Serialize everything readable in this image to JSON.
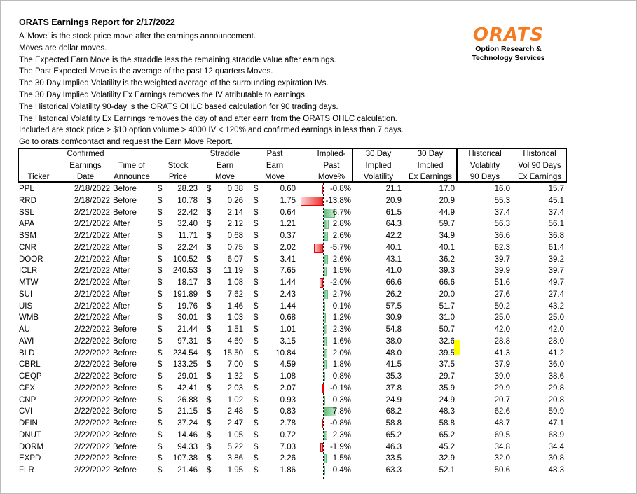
{
  "title": "ORATS Earnings Report for 2/17/2022",
  "notes": [
    "A 'Move' is the stock price move after the earnings announcement.",
    "Moves are dollar moves.",
    "The Expected Earn Move is the straddle less the remaining straddle value after earnings.",
    "The Past Expected Move is the average of the past 12 quarters Moves.",
    "The 30 Day Implied Volatility is the weighted average of the surrounding expiration IVs.",
    "The 30 Day Implied Volatility Ex Earnings removes the IV atributable to earnings.",
    "The Historical Volatility 90-day is the ORATS OHLC based calculation for 90 trading days.",
    "The Historical Volatility Ex Earnings removes the day of and after earn from the ORATS OHLC calculation.",
    "Included are stock price > $10 option volume > 4000 IV < 120% and confirmed earnings in less than 7 days.",
    "Go to orats.com\\contact and request the Earn Move Report."
  ],
  "logo": {
    "mark": "ORATS",
    "line1": "Option Research &",
    "line2": "Technology Services",
    "color": "#f47b20"
  },
  "headers": {
    "ticker": "Ticker",
    "date": [
      "Confirmed",
      "Earnings",
      "Date"
    ],
    "time": [
      "Time of",
      "Announce"
    ],
    "price": [
      "Stock",
      "Price"
    ],
    "straddle": [
      "Straddle",
      "Earn",
      "Move"
    ],
    "past": [
      "Past",
      "Earn",
      "Move"
    ],
    "diff": [
      "Implied-",
      "Past",
      "Move%"
    ],
    "iv": [
      "30 Day",
      "Implied",
      "Volatility"
    ],
    "ivx": [
      "30 Day",
      "Implied",
      "Ex Earnings"
    ],
    "hv": [
      "Historical",
      "Volatility",
      "90 Days"
    ],
    "hvx": [
      "Historical",
      "Vol 90 Days",
      "Ex Earnings"
    ]
  },
  "currency": "$",
  "rows": [
    [
      "PPL",
      "2/18/2022",
      "Before",
      "28.23",
      "0.38",
      "0.60",
      "-0.8%",
      "21.1",
      "17.0",
      "16.0",
      "15.7"
    ],
    [
      "RRD",
      "2/18/2022",
      "Before",
      "10.78",
      "0.26",
      "1.75",
      "-13.8%",
      "20.9",
      "20.9",
      "55.3",
      "45.1"
    ],
    [
      "SSL",
      "2/21/2022",
      "Before",
      "22.42",
      "2.14",
      "0.64",
      "6.7%",
      "61.5",
      "44.9",
      "37.4",
      "37.4"
    ],
    [
      "APA",
      "2/21/2022",
      "After",
      "32.40",
      "2.12",
      "1.21",
      "2.8%",
      "64.3",
      "59.7",
      "56.3",
      "56.1"
    ],
    [
      "BSM",
      "2/21/2022",
      "After",
      "11.71",
      "0.68",
      "0.37",
      "2.6%",
      "42.2",
      "34.9",
      "36.6",
      "36.8"
    ],
    [
      "CNR",
      "2/21/2022",
      "After",
      "22.24",
      "0.75",
      "2.02",
      "-5.7%",
      "40.1",
      "40.1",
      "62.3",
      "61.4"
    ],
    [
      "DOOR",
      "2/21/2022",
      "After",
      "100.52",
      "6.07",
      "3.41",
      "2.6%",
      "43.1",
      "36.2",
      "39.7",
      "39.2"
    ],
    [
      "ICLR",
      "2/21/2022",
      "After",
      "240.53",
      "11.19",
      "7.65",
      "1.5%",
      "41.0",
      "39.3",
      "39.9",
      "39.7"
    ],
    [
      "MTW",
      "2/21/2022",
      "After",
      "18.17",
      "1.08",
      "1.44",
      "-2.0%",
      "66.6",
      "66.6",
      "51.6",
      "49.7"
    ],
    [
      "SUI",
      "2/21/2022",
      "After",
      "191.89",
      "7.62",
      "2.43",
      "2.7%",
      "26.2",
      "20.0",
      "27.6",
      "27.4"
    ],
    [
      "UIS",
      "2/21/2022",
      "After",
      "19.76",
      "1.46",
      "1.44",
      "0.1%",
      "57.5",
      "51.7",
      "50.2",
      "43.2"
    ],
    [
      "WMB",
      "2/21/2022",
      "After",
      "30.01",
      "1.03",
      "0.68",
      "1.2%",
      "30.9",
      "31.0",
      "25.0",
      "25.0"
    ],
    [
      "AU",
      "2/22/2022",
      "Before",
      "21.44",
      "1.51",
      "1.01",
      "2.3%",
      "54.8",
      "50.7",
      "42.0",
      "42.0"
    ],
    [
      "AWI",
      "2/22/2022",
      "Before",
      "97.31",
      "4.69",
      "3.15",
      "1.6%",
      "38.0",
      "32.6",
      "28.8",
      "28.0"
    ],
    [
      "BLD",
      "2/22/2022",
      "Before",
      "234.54",
      "15.50",
      "10.84",
      "2.0%",
      "48.0",
      "39.5",
      "41.3",
      "41.2"
    ],
    [
      "CBRL",
      "2/22/2022",
      "Before",
      "133.25",
      "7.00",
      "4.59",
      "1.8%",
      "41.5",
      "37.5",
      "37.9",
      "36.0"
    ],
    [
      "CEQP",
      "2/22/2022",
      "Before",
      "29.01",
      "1.32",
      "1.08",
      "0.8%",
      "35.3",
      "29.7",
      "39.0",
      "38.6"
    ],
    [
      "CFX",
      "2/22/2022",
      "Before",
      "42.41",
      "2.03",
      "2.07",
      "-0.1%",
      "37.8",
      "35.9",
      "29.9",
      "29.8"
    ],
    [
      "CNP",
      "2/22/2022",
      "Before",
      "26.88",
      "1.02",
      "0.93",
      "0.3%",
      "24.9",
      "24.9",
      "20.7",
      "20.8"
    ],
    [
      "CVI",
      "2/22/2022",
      "Before",
      "21.15",
      "2.48",
      "0.83",
      "7.8%",
      "68.2",
      "48.3",
      "62.6",
      "59.9"
    ],
    [
      "DFIN",
      "2/22/2022",
      "Before",
      "37.24",
      "2.47",
      "2.78",
      "-0.8%",
      "58.8",
      "58.8",
      "48.7",
      "47.1"
    ],
    [
      "DNUT",
      "2/22/2022",
      "Before",
      "14.46",
      "1.05",
      "0.72",
      "2.3%",
      "65.2",
      "65.2",
      "69.5",
      "68.9"
    ],
    [
      "DORM",
      "2/22/2022",
      "Before",
      "94.33",
      "5.22",
      "7.03",
      "-1.9%",
      "46.3",
      "45.2",
      "34.8",
      "34.4"
    ],
    [
      "EXPD",
      "2/22/2022",
      "Before",
      "107.38",
      "3.86",
      "2.26",
      "1.5%",
      "33.5",
      "32.9",
      "32.0",
      "30.8"
    ],
    [
      "FLR",
      "2/22/2022",
      "Before",
      "21.46",
      "1.95",
      "1.86",
      "0.4%",
      "63.3",
      "52.1",
      "50.6",
      "48.3"
    ]
  ],
  "colors": {
    "negative": "#f03030",
    "positive": "#63be7b",
    "highlight": "#ffff00"
  }
}
